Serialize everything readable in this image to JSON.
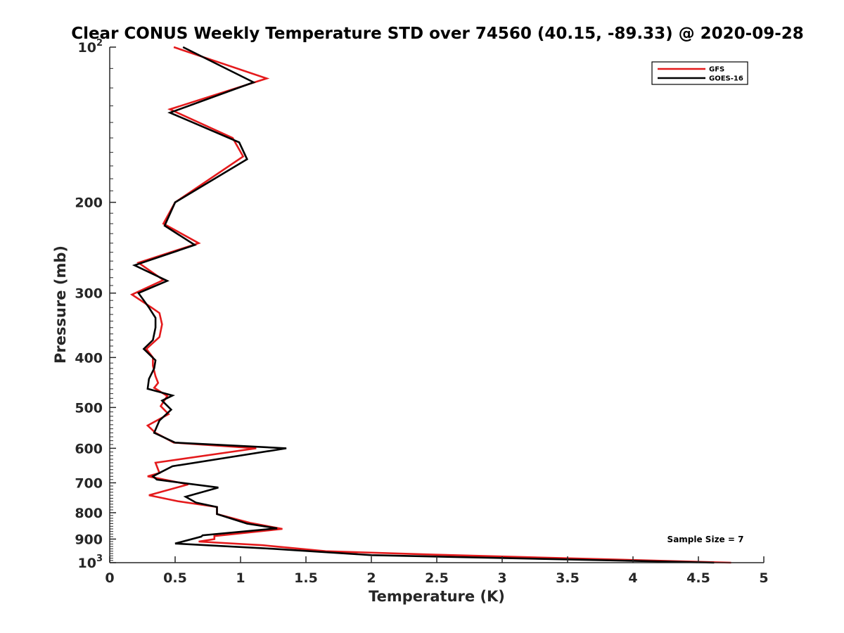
{
  "chart_data": {
    "type": "line",
    "title": "Clear CONUS Weekly Temperature STD over 74560 (40.15, -89.33) @ 2020-09-28",
    "xlabel": "Temperature (K)",
    "ylabel": "Pressure (mb)",
    "xlim": [
      0,
      5
    ],
    "ylim": [
      100,
      1000
    ],
    "y_scale": "log",
    "y_reversed": true,
    "x_ticks": [
      {
        "v": 0,
        "label": "0"
      },
      {
        "v": 0.5,
        "label": "0.5"
      },
      {
        "v": 1,
        "label": "1"
      },
      {
        "v": 1.5,
        "label": "1.5"
      },
      {
        "v": 2,
        "label": "2"
      },
      {
        "v": 2.5,
        "label": "2.5"
      },
      {
        "v": 3,
        "label": "3"
      },
      {
        "v": 3.5,
        "label": "3.5"
      },
      {
        "v": 4,
        "label": "4"
      },
      {
        "v": 4.5,
        "label": "4.5"
      },
      {
        "v": 5,
        "label": "5"
      }
    ],
    "y_ticks": [
      {
        "v": 100,
        "base": "10",
        "exp": "2"
      },
      {
        "v": 200,
        "label": "200"
      },
      {
        "v": 300,
        "label": "300"
      },
      {
        "v": 400,
        "label": "400"
      },
      {
        "v": 500,
        "label": "500"
      },
      {
        "v": 600,
        "label": "600"
      },
      {
        "v": 700,
        "label": "700"
      },
      {
        "v": 800,
        "label": "800"
      },
      {
        "v": 900,
        "label": "900"
      },
      {
        "v": 1000,
        "base": "10",
        "exp": "3"
      }
    ],
    "grid": false,
    "legend_position": "top-right",
    "annotation": "Sample Size = 7",
    "series": [
      {
        "name": "GFS",
        "color": "#e41a1c",
        "points": [
          [
            0.49,
            100
          ],
          [
            1.2,
            115
          ],
          [
            0.46,
            132
          ],
          [
            0.94,
            150
          ],
          [
            1.02,
            163
          ],
          [
            0.5,
            200
          ],
          [
            0.41,
            220
          ],
          [
            0.68,
            240
          ],
          [
            0.22,
            262
          ],
          [
            0.41,
            283
          ],
          [
            0.17,
            302
          ],
          [
            0.32,
            320
          ],
          [
            0.38,
            328
          ],
          [
            0.4,
            345
          ],
          [
            0.38,
            365
          ],
          [
            0.28,
            385
          ],
          [
            0.33,
            400
          ],
          [
            0.33,
            415
          ],
          [
            0.35,
            435
          ],
          [
            0.37,
            448
          ],
          [
            0.34,
            458
          ],
          [
            0.44,
            475
          ],
          [
            0.39,
            497
          ],
          [
            0.45,
            515
          ],
          [
            0.29,
            542
          ],
          [
            0.35,
            560
          ],
          [
            0.49,
            585
          ],
          [
            1.12,
            600
          ],
          [
            0.35,
            640
          ],
          [
            0.38,
            670
          ],
          [
            0.29,
            680
          ],
          [
            0.6,
            705
          ],
          [
            0.3,
            740
          ],
          [
            0.52,
            760
          ],
          [
            0.82,
            780
          ],
          [
            0.82,
            805
          ],
          [
            1.08,
            838
          ],
          [
            1.32,
            860
          ],
          [
            0.8,
            888
          ],
          [
            0.8,
            900
          ],
          [
            0.68,
            910
          ],
          [
            1.17,
            925
          ],
          [
            1.65,
            950
          ],
          [
            2.5,
            965
          ],
          [
            4.75,
            1000
          ]
        ]
      },
      {
        "name": "GOES-16",
        "color": "#000000",
        "points": [
          [
            0.56,
            100
          ],
          [
            1.1,
            117
          ],
          [
            0.46,
            134
          ],
          [
            0.99,
            153
          ],
          [
            1.05,
            165
          ],
          [
            0.5,
            200
          ],
          [
            0.42,
            222
          ],
          [
            0.65,
            242
          ],
          [
            0.19,
            265
          ],
          [
            0.44,
            284
          ],
          [
            0.22,
            300
          ],
          [
            0.3,
            320
          ],
          [
            0.35,
            335
          ],
          [
            0.35,
            350
          ],
          [
            0.33,
            370
          ],
          [
            0.26,
            385
          ],
          [
            0.35,
            405
          ],
          [
            0.34,
            420
          ],
          [
            0.3,
            440
          ],
          [
            0.29,
            460
          ],
          [
            0.48,
            474
          ],
          [
            0.4,
            485
          ],
          [
            0.47,
            505
          ],
          [
            0.38,
            530
          ],
          [
            0.34,
            560
          ],
          [
            0.5,
            585
          ],
          [
            1.35,
            600
          ],
          [
            0.48,
            650
          ],
          [
            0.33,
            680
          ],
          [
            0.36,
            690
          ],
          [
            0.83,
            715
          ],
          [
            0.58,
            745
          ],
          [
            0.66,
            765
          ],
          [
            0.82,
            780
          ],
          [
            0.82,
            805
          ],
          [
            1.05,
            840
          ],
          [
            1.28,
            858
          ],
          [
            0.71,
            885
          ],
          [
            0.7,
            890
          ],
          [
            0.5,
            918
          ],
          [
            1.25,
            940
          ],
          [
            2.0,
            967
          ],
          [
            4.62,
            1000
          ]
        ]
      }
    ]
  }
}
